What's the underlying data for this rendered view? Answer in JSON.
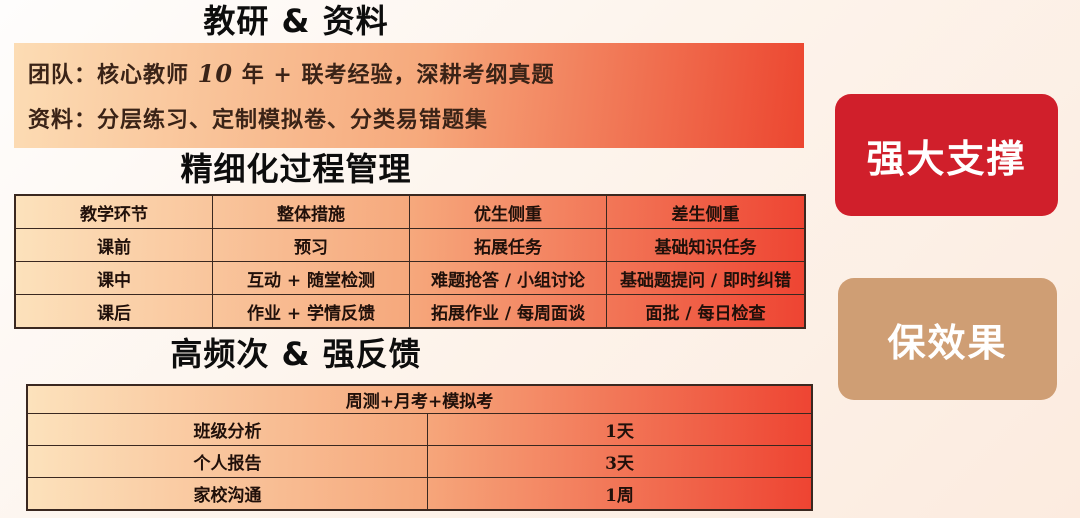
{
  "colors": {
    "badge_red": "#d01f2b",
    "badge_tan": "#cf9e74",
    "panel_gradient_start": "#fcdcb4",
    "panel_gradient_end": "#ec4630",
    "table_border": "#3a2820",
    "background_start": "#fefdfc",
    "background_end": "#fcebdf"
  },
  "sections": {
    "research": {
      "title": "教研 & 资料"
    },
    "process": {
      "title": "精细化过程管理"
    },
    "feedback": {
      "title": "高频次 & 强反馈"
    }
  },
  "info_box": {
    "team_pre": "团队：核心教师 ",
    "team_num": "10",
    "team_post": " 年 + 联考经验，深耕考纲真题",
    "materials": "资料：分层练习、定制模拟卷、分类易错题集"
  },
  "process_table": {
    "headers": [
      "教学环节",
      "整体措施",
      "优生侧重",
      "差生侧重"
    ],
    "rows": [
      [
        "课前",
        "预习",
        "拓展任务",
        "基础知识任务"
      ],
      [
        "课中",
        "互动 + 随堂检测",
        "难题抢答 / 小组讨论",
        "基础题提问 / 即时纠错"
      ],
      [
        "课后",
        "作业 + 学情反馈",
        "拓展作业 / 每周面谈",
        "面批 / 每日检查"
      ]
    ]
  },
  "feedback_table": {
    "header": "周测+月考+模拟考",
    "rows": [
      [
        "班级分析",
        "1天"
      ],
      [
        "个人报告",
        "3天"
      ],
      [
        "家校沟通",
        "1周"
      ]
    ]
  },
  "badges": {
    "support": {
      "label": "强大支撑"
    },
    "effect": {
      "label": "保效果"
    }
  }
}
